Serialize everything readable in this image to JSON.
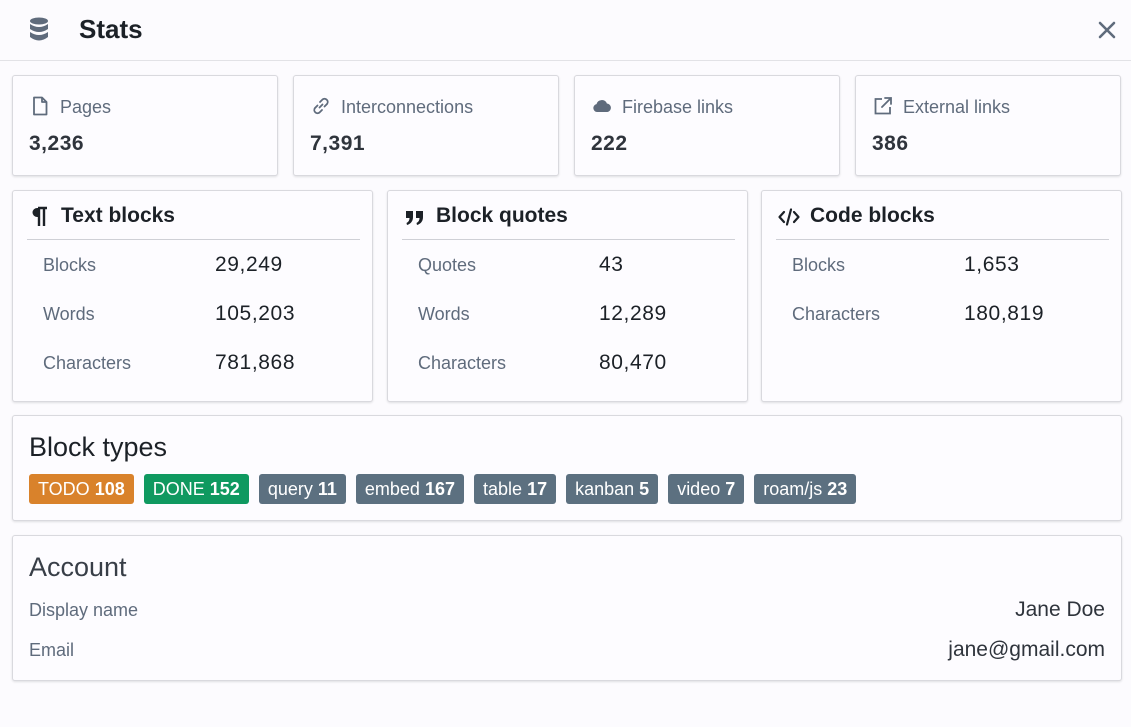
{
  "dialog": {
    "title": "Stats",
    "icons": {
      "title": "database-icon",
      "close": "close-icon"
    }
  },
  "stats": [
    {
      "label": "Pages",
      "value": "3,236",
      "icon": "document-icon"
    },
    {
      "label": "Interconnections",
      "value": "7,391",
      "icon": "link-icon"
    },
    {
      "label": "Firebase links",
      "value": "222",
      "icon": "cloud-icon"
    },
    {
      "label": "External links",
      "value": "386",
      "icon": "external-link-icon"
    }
  ],
  "text_blocks": {
    "title": "Text blocks",
    "icon": "paragraph-icon",
    "rows": [
      {
        "label": "Blocks",
        "value": "29,249"
      },
      {
        "label": "Words",
        "value": "105,203"
      },
      {
        "label": "Characters",
        "value": "781,868"
      }
    ]
  },
  "block_quotes": {
    "title": "Block quotes",
    "icon": "quote-icon",
    "rows": [
      {
        "label": "Quotes",
        "value": "43"
      },
      {
        "label": "Words",
        "value": "12,289"
      },
      {
        "label": "Characters",
        "value": "80,470"
      }
    ]
  },
  "code_blocks": {
    "title": "Code blocks",
    "icon": "code-icon",
    "rows": [
      {
        "label": "Blocks",
        "value": "1,653"
      },
      {
        "label": "Characters",
        "value": "180,819"
      }
    ]
  },
  "block_types": {
    "title": "Block types",
    "tags": [
      {
        "name": "TODO",
        "count": "108",
        "color": "#d9822b"
      },
      {
        "name": "DONE",
        "count": "152",
        "color": "#0f9960"
      },
      {
        "name": "query",
        "count": "11",
        "color": "#5c7080"
      },
      {
        "name": "embed",
        "count": "167",
        "color": "#5c7080"
      },
      {
        "name": "table",
        "count": "17",
        "color": "#5c7080"
      },
      {
        "name": "kanban",
        "count": "5",
        "color": "#5c7080"
      },
      {
        "name": "video",
        "count": "7",
        "color": "#5c7080"
      },
      {
        "name": "roam/js",
        "count": "23",
        "color": "#5c7080"
      }
    ]
  },
  "account": {
    "title": "Account",
    "display_name_label": "Display name",
    "display_name": "Jane Doe",
    "email_label": "Email",
    "email": "jane@gmail.com"
  }
}
